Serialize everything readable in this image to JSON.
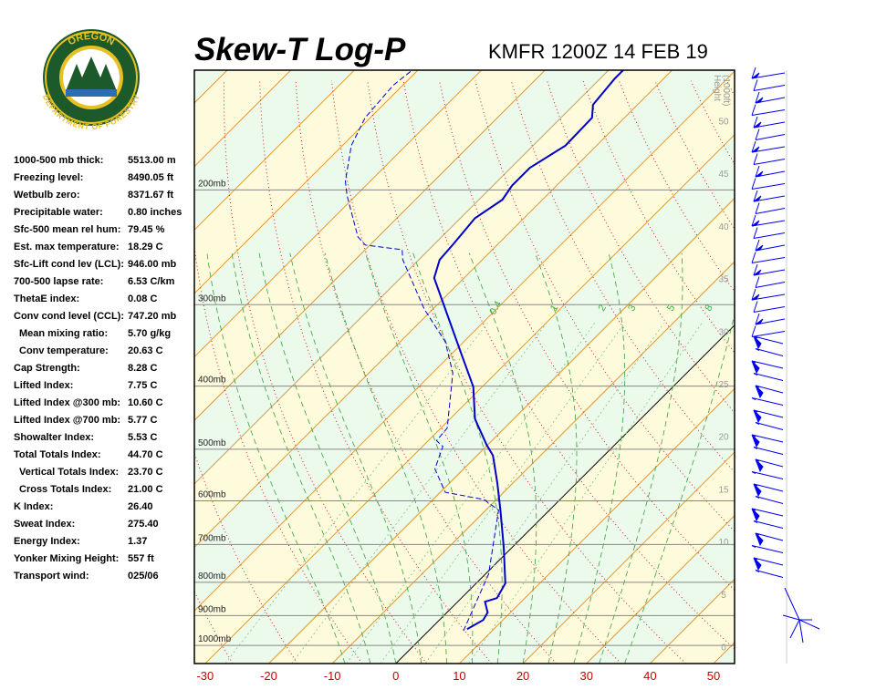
{
  "logo": {
    "top": "OREGON",
    "bottom": "DEPARTMENT OF FORESTRY"
  },
  "stats": [
    {
      "label": "1000-500 mb thick:",
      "value": "5513.00 m"
    },
    {
      "label": "Freezing level:",
      "value": "8490.05 ft"
    },
    {
      "label": "Wetbulb zero:",
      "value": "8371.67 ft"
    },
    {
      "label": "Precipitable water:",
      "value": "0.80 inches"
    },
    {
      "label": "Sfc-500 mean rel hum:",
      "value": "79.45 %"
    },
    {
      "label": "Est. max temperature:",
      "value": "18.29 C"
    },
    {
      "label": "Sfc-Lift cond lev (LCL):",
      "value": "946.00 mb"
    },
    {
      "label": "700-500 lapse rate:",
      "value": "6.53 C/km"
    },
    {
      "label": "ThetaE index:",
      "value": "0.08 C"
    },
    {
      "label": "Conv cond level (CCL):",
      "value": "747.20 mb",
      "sub": [
        {
          "label": "Mean mixing ratio:",
          "value": "5.70 g/kg"
        },
        {
          "label": "Conv temperature:",
          "value": "20.63 C"
        }
      ]
    },
    {
      "label": "Cap Strength:",
      "value": "8.28 C"
    },
    {
      "label": "Lifted Index:",
      "value": "7.75 C"
    },
    {
      "label": "Lifted Index @300 mb:",
      "value": "10.60 C"
    },
    {
      "label": "Lifted Index @700 mb:",
      "value": "5.77 C"
    },
    {
      "label": "Showalter Index:",
      "value": "5.53 C"
    },
    {
      "label": "Total Totals Index:",
      "value": "44.70 C",
      "sub": [
        {
          "label": "Vertical Totals Index:",
          "value": "23.70 C"
        },
        {
          "label": "Cross Totals Index:",
          "value": "21.00 C"
        }
      ]
    },
    {
      "label": "K Index:",
      "value": "26.40"
    },
    {
      "label": "Sweat Index:",
      "value": "275.40"
    },
    {
      "label": "Energy Index:",
      "value": "1.37"
    },
    {
      "label": "Yonker Mixing Height:",
      "value": "557 ft"
    },
    {
      "label": "Transport wind:",
      "value": "025/06"
    }
  ],
  "chart_data": {
    "type": "skewt",
    "title": "Skew-T Log-P",
    "subtitle": "KMFR 1200Z 14 FEB 19",
    "xlim": [
      -31.7,
      53.3
    ],
    "xticks": [
      -30,
      -20,
      -10,
      0,
      10,
      20,
      30,
      40,
      50
    ],
    "ylim": [
      1066,
      131
    ],
    "log_y": true,
    "yticks": [
      {
        "value": 1000,
        "label": "1000mb"
      },
      {
        "value": 900,
        "label": "900mb"
      },
      {
        "value": 800,
        "label": "800mb"
      },
      {
        "value": 700,
        "label": "700mb"
      },
      {
        "value": 600,
        "label": "600mb"
      },
      {
        "value": 500,
        "label": "500mb"
      },
      {
        "value": 400,
        "label": "400mb"
      },
      {
        "value": 300,
        "label": "300mb"
      },
      {
        "value": 200,
        "label": "200mb"
      }
    ],
    "y2_label": [
      "Height",
      "(1000ft)"
    ],
    "y2lim": [
      -1.6,
      54.8
    ],
    "y2ticks": [
      0,
      5,
      10,
      15,
      20,
      25,
      30,
      35,
      40,
      45,
      50
    ],
    "mixing_ratio_labels": [
      0.4,
      1,
      2,
      3,
      5,
      8
    ],
    "series": [
      {
        "color": "#0000cc",
        "line_style": "solid",
        "pressure": [
          944,
          914,
          890,
          857,
          846,
          803,
          706,
          620,
          563,
          511,
          492,
          449,
          401,
          358,
          273,
          256,
          243,
          221,
          207,
          197,
          185,
          171,
          155,
          148,
          135,
          131
        ],
        "values": [
          5.8,
          6.9,
          6.4,
          4.3,
          5.6,
          4.6,
          -1.4,
          -7.7,
          -12.5,
          -17.5,
          -20.2,
          -26.1,
          -31.4,
          -38.3,
          -54.7,
          -56.7,
          -57,
          -57.7,
          -56.3,
          -57,
          -57,
          -54.9,
          -55.1,
          -57,
          -57.7,
          -57.7
        ]
      },
      {
        "color": "#0000cc",
        "line_style": "dashed",
        "pressure": [
          950,
          870,
          777,
          706,
          620,
          597,
          582,
          536,
          495,
          485,
          464,
          382,
          342,
          305,
          256,
          247,
          243,
          236,
          204,
          194,
          171,
          155,
          138,
          131
        ],
        "values": [
          5.5,
          3.3,
          0.5,
          -3.1,
          -8.0,
          -12,
          -19.2,
          -24.5,
          -26.8,
          -28.7,
          -29,
          -36.8,
          -42.9,
          -51.3,
          -62.5,
          -64.2,
          -70.7,
          -73.2,
          -81.4,
          -83.9,
          -88.6,
          -90.8,
          -91.5,
          -90.9
        ]
      }
    ]
  }
}
